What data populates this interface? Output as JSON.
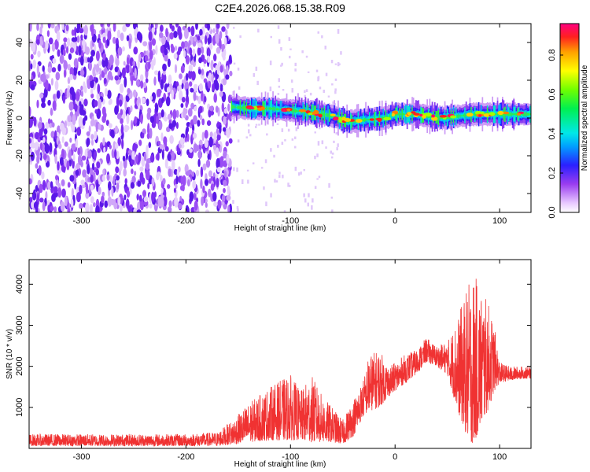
{
  "title": "C2E4.2026.068.15.38.R09",
  "colors": {
    "snr_line": "#f03232",
    "spectrogram_noise": "#7a2cf0",
    "spectrogram_signal_peak": "#e8103a"
  },
  "chart_data": [
    {
      "type": "heatmap",
      "xlabel": "Height of straight line (km)",
      "ylabel": "Frequency (Hz)",
      "xlim": [
        -350,
        130
      ],
      "ylim": [
        -50,
        50
      ],
      "xticks": [
        -300,
        -200,
        -100,
        0,
        100
      ],
      "yticks": [
        -40,
        -20,
        0,
        20,
        40
      ],
      "noise_only_region": [
        -350,
        -157
      ],
      "signal_track": {
        "x": [
          -157,
          -140,
          -120,
          -100,
          -80,
          -60,
          -45,
          -30,
          -10,
          0,
          10,
          20,
          30,
          45,
          60,
          75,
          90,
          100,
          115,
          130
        ],
        "y": [
          6,
          5,
          5,
          4,
          3,
          1,
          -2,
          -1,
          0,
          2,
          2,
          2,
          1,
          0,
          1,
          2,
          2,
          2,
          2,
          2
        ]
      },
      "colorbar": {
        "label": "Normalized spectral amplitude",
        "ticks": [
          0.0,
          0.2,
          0.4,
          0.6,
          0.8
        ],
        "range": [
          0,
          0.96
        ]
      }
    },
    {
      "type": "line",
      "xlabel": "Height of straight line (km)",
      "ylabel": "SNR (10 * v/v)",
      "xlim": [
        -350,
        130
      ],
      "ylim": [
        0,
        4600
      ],
      "xticks": [
        -300,
        -200,
        -100,
        0,
        100
      ],
      "yticks": [
        1000,
        2000,
        3000,
        4000
      ],
      "series": [
        {
          "color": "#f03232",
          "envelope": {
            "x": [
              -350,
              -300,
              -250,
              -200,
              -170,
              -155,
              -140,
              -120,
              -100,
              -90,
              -80,
              -70,
              -60,
              -50,
              -40,
              -30,
              -25,
              -15,
              -5,
              0,
              10,
              20,
              30,
              40,
              50,
              60,
              70,
              75,
              80,
              90,
              95,
              100,
              110,
              120,
              130
            ],
            "low": [
              60,
              60,
              60,
              60,
              60,
              100,
              150,
              200,
              200,
              200,
              150,
              150,
              150,
              100,
              300,
              800,
              900,
              1000,
              1300,
              1400,
              1600,
              1800,
              2100,
              2000,
              1800,
              900,
              200,
              100,
              400,
              1000,
              1400,
              1600,
              1650,
              1700,
              1700
            ],
            "high": [
              350,
              350,
              350,
              350,
              400,
              700,
              1100,
              1500,
              1800,
              1400,
              1800,
              1300,
              1000,
              700,
              1200,
              1700,
              2300,
              2400,
              2000,
              2100,
              2300,
              2400,
              2700,
              2500,
              2600,
              3200,
              4000,
              4300,
              4000,
              3500,
              3000,
              2100,
              2000,
              2000,
              2000
            ]
          }
        }
      ]
    }
  ]
}
